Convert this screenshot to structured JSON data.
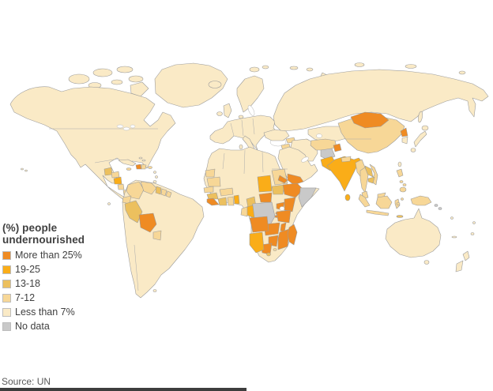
{
  "legend": {
    "title_line1": "(%) people",
    "title_line2": "undernourished",
    "items": [
      {
        "label": "More than 25%",
        "cat": "cat5"
      },
      {
        "label": "19-25",
        "cat": "cat4"
      },
      {
        "label": "13-18",
        "cat": "cat3"
      },
      {
        "label": "7-12",
        "cat": "cat2"
      },
      {
        "label": "Less than 7%",
        "cat": "cat1"
      },
      {
        "label": "No data",
        "cat": "cat0"
      }
    ]
  },
  "source": {
    "label": "Source: UN"
  },
  "palette": {
    "cat5": "#EF8B23",
    "cat4": "#FAAD18",
    "cat3": "#ECC05E",
    "cat2": "#F7D797",
    "cat1": "#FAEAC6",
    "cat0": "#C9C9C9",
    "border": "#9C9C9C",
    "text": "#404040",
    "sea": "#FFFFFF"
  },
  "chart_data": {
    "type": "choropleth-map",
    "title": "(%) people undernourished",
    "source": "Source: UN",
    "legend_categories": [
      "More than 25%",
      "19-25",
      "13-18",
      "7-12",
      "Less than 7%",
      "No data"
    ],
    "regions": {
      "more_than_25_pct": [
        "Haiti",
        "Bolivia",
        "Sierra Leone",
        "Liberia",
        "Central African Republic",
        "Eritrea",
        "Ethiopia",
        "Uganda",
        "Kenya",
        "Rwanda",
        "Burundi",
        "Tanzania",
        "Malawi",
        "Zambia",
        "Angola",
        "Mozambique",
        "Zimbabwe",
        "Botswana",
        "Madagascar",
        "Yemen",
        "Tajikistan",
        "Mongolia",
        "North Korea"
      ],
      "19_25_pct": [
        "Nicaragua",
        "Chad",
        "Togo",
        "Benin",
        "Republic of Congo",
        "Namibia",
        "Pakistan",
        "India",
        "Sri Lanka"
      ],
      "13_18_pct": [
        "Guatemala",
        "Peru",
        "Guyana",
        "Guinea",
        "Ivory Coast",
        "Cameroon",
        "South Sudan",
        "Lesotho",
        "Bangladesh",
        "Laos",
        "Cambodia",
        "Timor-Leste"
      ],
      "7_12_pct": [
        "Honduras",
        "Costa Rica",
        "Panama",
        "Dominican Republic",
        "Colombia",
        "Venezuela",
        "Ecuador",
        "Suriname",
        "Paraguay",
        "Western Sahara",
        "Mauritania",
        "Senegal",
        "Burkina Faso",
        "Ghana",
        "Gabon",
        "Sudan",
        "Iraq",
        "Syria",
        "Turkmenistan",
        "Uzbekistan",
        "Nepal",
        "Myanmar",
        "Thailand",
        "Vietnam",
        "Malaysia",
        "Indonesia",
        "Philippines",
        "China",
        "Papua New Guinea"
      ],
      "less_than_7_pct": [
        "Canada",
        "United States",
        "Mexico",
        "Cuba",
        "Brazil",
        "Argentina",
        "Chile",
        "Greenland",
        "Europe",
        "Russia",
        "Kazakhstan",
        "Turkey",
        "Iran",
        "Saudi Arabia",
        "Egypt",
        "Morocco",
        "Algeria",
        "Libya",
        "Tunisia",
        "Mali",
        "Niger",
        "Nigeria",
        "South Africa",
        "Japan",
        "South Korea",
        "Australia",
        "New Zealand"
      ],
      "no_data": [
        "Democratic Republic of Congo",
        "Somalia",
        "Afghanistan",
        "Solomon Islands"
      ]
    }
  }
}
